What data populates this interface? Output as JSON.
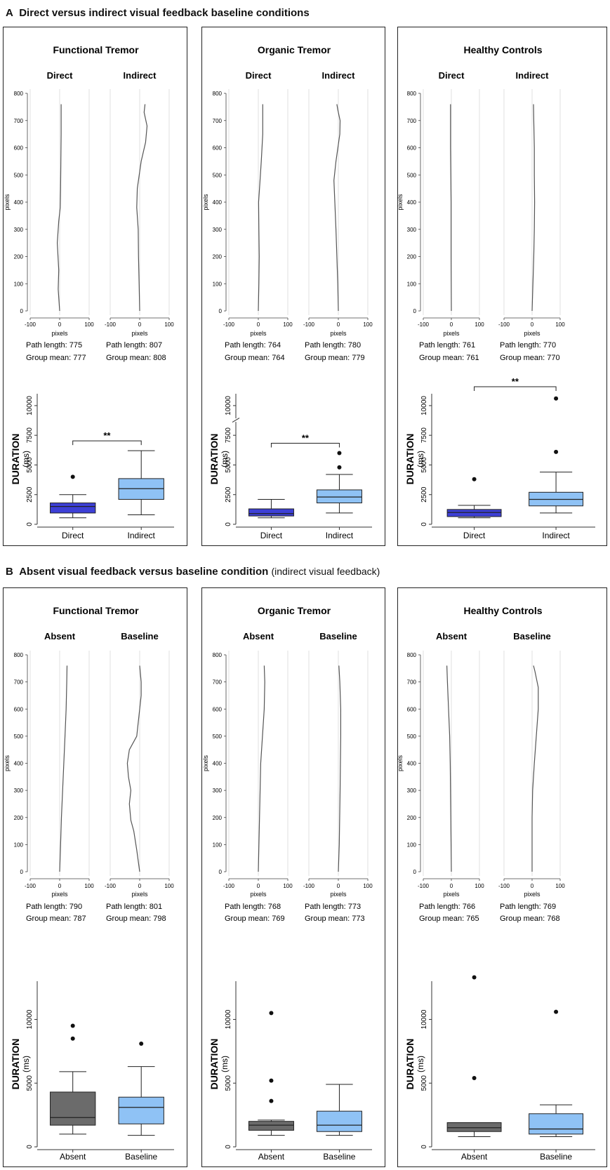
{
  "section_a": {
    "letter": "A",
    "title": "Direct versus indirect visual feedback baseline conditions",
    "subtitle": ""
  },
  "section_b": {
    "letter": "B",
    "title": "Absent visual feedback versus baseline condition",
    "subtitle": "(indirect visual feedback)"
  },
  "colors": {
    "direct": "#3d3fd6",
    "indirect": "#8fc2f5",
    "absent": "#6b6b6b",
    "baseline": "#8fc2f5",
    "trace": "#555555",
    "grid": "#d8d8d8"
  },
  "chart_data": [
    {
      "type": "line",
      "section": "A",
      "group": "Functional Tremor",
      "trajectory": {
        "ylabel": "pixels",
        "xlabel": "pixels",
        "ylim": [
          0,
          800
        ],
        "xlim": [
          -100,
          100
        ],
        "y_ticks": [
          "0",
          "100",
          "200",
          "300",
          "400",
          "500",
          "600",
          "700",
          "800"
        ],
        "x_ticks": [
          "-100",
          "0",
          "100"
        ],
        "panels": [
          {
            "label": "Direct",
            "path_length": "775",
            "group_mean": "777",
            "y": [
              0,
              80,
              150,
              250,
              330,
              380,
              450,
              550,
              650,
              760
            ],
            "x": [
              0,
              -5,
              -3,
              -8,
              -3,
              2,
              3,
              4,
              5,
              5
            ]
          },
          {
            "label": "Indirect",
            "path_length": "807",
            "group_mean": "808",
            "y": [
              0,
              100,
              200,
              300,
              380,
              450,
              550,
              620,
              680,
              730,
              760
            ],
            "x": [
              0,
              -2,
              -4,
              -5,
              -10,
              -8,
              5,
              20,
              25,
              15,
              18
            ]
          }
        ]
      },
      "box": {
        "ylabel": "DURATION\n(ms)",
        "y_ticks": [
          "0",
          "2500",
          "5000",
          "7500",
          "10000"
        ],
        "ylim": [
          0,
          11000
        ],
        "axis_break": false,
        "significance": "**",
        "boxes": [
          {
            "label": "Direct",
            "min": 550,
            "q1": 950,
            "median": 1500,
            "q3": 1800,
            "max": 2500,
            "outliers": [
              4000
            ]
          },
          {
            "label": "Indirect",
            "min": 800,
            "q1": 2100,
            "median": 3000,
            "q3": 3850,
            "max": 6200,
            "outliers": []
          }
        ]
      }
    },
    {
      "type": "line",
      "section": "A",
      "group": "Organic Tremor",
      "trajectory": {
        "ylabel": "pixels",
        "xlabel": "pixels",
        "ylim": [
          0,
          800
        ],
        "xlim": [
          -100,
          100
        ],
        "y_ticks": [
          "0",
          "100",
          "200",
          "300",
          "400",
          "500",
          "600",
          "700",
          "800"
        ],
        "x_ticks": [
          "-100",
          "0",
          "100"
        ],
        "panels": [
          {
            "label": "Direct",
            "path_length": "764",
            "group_mean": "764",
            "y": [
              0,
              100,
              200,
              300,
              400,
              450,
              550,
              650,
              760
            ],
            "x": [
              0,
              2,
              3,
              2,
              1,
              4,
              10,
              15,
              15
            ]
          },
          {
            "label": "Indirect",
            "path_length": "780",
            "group_mean": "779",
            "y": [
              0,
              100,
              200,
              300,
              400,
              480,
              550,
              650,
              700,
              740,
              760
            ],
            "x": [
              0,
              -2,
              -5,
              -8,
              -12,
              -15,
              -8,
              5,
              6,
              -2,
              -5
            ]
          }
        ]
      },
      "box": {
        "ylabel": "DURATION\n(ms)",
        "y_ticks": [
          "0",
          "2500",
          "5000",
          "7500",
          "10000"
        ],
        "ylim": [
          0,
          11000
        ],
        "axis_break": true,
        "significance": "**",
        "boxes": [
          {
            "label": "Direct",
            "min": 550,
            "q1": 700,
            "median": 900,
            "q3": 1300,
            "max": 2100,
            "outliers": []
          },
          {
            "label": "Indirect",
            "min": 950,
            "q1": 1800,
            "median": 2300,
            "q3": 2900,
            "max": 4200,
            "outliers": [
              4800,
              6000
            ]
          }
        ]
      }
    },
    {
      "type": "line",
      "section": "A",
      "group": "Healthy Controls",
      "trajectory": {
        "ylabel": "pixels",
        "xlabel": "pixels",
        "ylim": [
          0,
          800
        ],
        "xlim": [
          -100,
          100
        ],
        "y_ticks": [
          "0",
          "100",
          "200",
          "300",
          "400",
          "500",
          "600",
          "700",
          "800"
        ],
        "x_ticks": [
          "-100",
          "0",
          "100"
        ],
        "panels": [
          {
            "label": "Direct",
            "path_length": "761",
            "group_mean": "761",
            "y": [
              0,
              200,
              400,
              500,
              600,
              700,
              760
            ],
            "x": [
              0,
              -1,
              -1,
              -2,
              -3,
              -3,
              -3
            ]
          },
          {
            "label": "Indirect",
            "path_length": "770",
            "group_mean": "770",
            "y": [
              0,
              100,
              200,
              300,
              400,
              500,
              600,
              700,
              760
            ],
            "x": [
              0,
              3,
              6,
              8,
              9,
              8,
              8,
              6,
              5
            ]
          }
        ]
      },
      "box": {
        "ylabel": "DURATION\n(ms)",
        "y_ticks": [
          "0",
          "2500",
          "5000",
          "7500",
          "10000"
        ],
        "ylim": [
          0,
          11000
        ],
        "axis_break": false,
        "significance": "**",
        "boxes": [
          {
            "label": "Direct",
            "min": 550,
            "q1": 650,
            "median": 1000,
            "q3": 1250,
            "max": 1600,
            "outliers": [
              3800
            ]
          },
          {
            "label": "Indirect",
            "min": 950,
            "q1": 1550,
            "median": 2100,
            "q3": 2700,
            "max": 4400,
            "outliers": [
              6100,
              10600
            ]
          }
        ]
      }
    },
    {
      "type": "line",
      "section": "B",
      "group": "Functional Tremor",
      "trajectory": {
        "ylabel": "pixels",
        "xlabel": "pixels",
        "ylim": [
          0,
          800
        ],
        "xlim": [
          -100,
          100
        ],
        "y_ticks": [
          "0",
          "100",
          "200",
          "300",
          "400",
          "500",
          "600",
          "700",
          "800"
        ],
        "x_ticks": [
          "-100",
          "0",
          "100"
        ],
        "panels": [
          {
            "label": "Absent",
            "path_length": "790",
            "group_mean": "787",
            "y": [
              0,
              100,
              200,
              300,
              400,
              500,
              600,
              700,
              760
            ],
            "x": [
              0,
              3,
              6,
              10,
              14,
              18,
              22,
              24,
              25
            ]
          },
          {
            "label": "Baseline",
            "path_length": "801",
            "group_mean": "798",
            "y": [
              0,
              80,
              150,
              190,
              250,
              300,
              350,
              400,
              450,
              500,
              550,
              600,
              650,
              700,
              760
            ],
            "x": [
              0,
              -10,
              -20,
              -30,
              -35,
              -30,
              -38,
              -42,
              -35,
              -10,
              -5,
              0,
              5,
              5,
              0
            ]
          }
        ]
      },
      "box": {
        "ylabel": "DURATION\n(ms)",
        "y_ticks": [
          "0",
          "5000",
          "10000"
        ],
        "ylim": [
          0,
          13000
        ],
        "axis_break": false,
        "significance": "",
        "boxes": [
          {
            "label": "Absent",
            "min": 1000,
            "q1": 1700,
            "median": 2300,
            "q3": 4300,
            "max": 5900,
            "outliers": [
              8500,
              9500
            ]
          },
          {
            "label": "Baseline",
            "min": 900,
            "q1": 1800,
            "median": 3100,
            "q3": 3900,
            "max": 6300,
            "outliers": [
              8100
            ]
          }
        ]
      }
    },
    {
      "type": "line",
      "section": "B",
      "group": "Organic Tremor",
      "trajectory": {
        "ylabel": "pixels",
        "xlabel": "pixels",
        "ylim": [
          0,
          800
        ],
        "xlim": [
          -100,
          100
        ],
        "y_ticks": [
          "0",
          "100",
          "200",
          "300",
          "400",
          "500",
          "600",
          "700",
          "800"
        ],
        "x_ticks": [
          "-100",
          "0",
          "100"
        ],
        "panels": [
          {
            "label": "Absent",
            "path_length": "768",
            "group_mean": "769",
            "y": [
              0,
              200,
              400,
              500,
              600,
              700,
              760
            ],
            "x": [
              0,
              4,
              8,
              14,
              20,
              22,
              20
            ]
          },
          {
            "label": "Baseline",
            "path_length": "773",
            "group_mean": "773",
            "y": [
              0,
              100,
              300,
              500,
              600,
              700,
              760
            ],
            "x": [
              0,
              3,
              6,
              8,
              8,
              5,
              2
            ]
          }
        ]
      },
      "box": {
        "ylabel": "DURATION\n(ms)",
        "y_ticks": [
          "0",
          "5000",
          "10000"
        ],
        "ylim": [
          0,
          13000
        ],
        "axis_break": false,
        "significance": "",
        "boxes": [
          {
            "label": "Absent",
            "min": 900,
            "q1": 1300,
            "median": 1700,
            "q3": 2000,
            "max": 2100,
            "outliers": [
              3600,
              5200,
              10500
            ]
          },
          {
            "label": "Baseline",
            "min": 900,
            "q1": 1200,
            "median": 1700,
            "q3": 2800,
            "max": 4900,
            "outliers": []
          }
        ]
      }
    },
    {
      "type": "line",
      "section": "B",
      "group": "Healthy Controls",
      "trajectory": {
        "ylabel": "pixels",
        "xlabel": "pixels",
        "ylim": [
          0,
          800
        ],
        "xlim": [
          -100,
          100
        ],
        "y_ticks": [
          "0",
          "100",
          "200",
          "300",
          "400",
          "500",
          "600",
          "700",
          "800"
        ],
        "x_ticks": [
          "-100",
          "0",
          "100"
        ],
        "panels": [
          {
            "label": "Absent",
            "path_length": "766",
            "group_mean": "765",
            "y": [
              0,
              200,
              400,
              500,
              600,
              700,
              760
            ],
            "x": [
              0,
              -2,
              -4,
              -6,
              -10,
              -14,
              -16
            ]
          },
          {
            "label": "Baseline",
            "path_length": "769",
            "group_mean": "768",
            "y": [
              0,
              200,
              300,
              400,
              500,
              600,
              680,
              740,
              760
            ],
            "x": [
              0,
              0,
              2,
              8,
              15,
              22,
              22,
              10,
              5
            ]
          }
        ]
      },
      "box": {
        "ylabel": "DURATION\n(ms)",
        "y_ticks": [
          "0",
          "5000",
          "10000"
        ],
        "ylim": [
          0,
          13000
        ],
        "axis_break": false,
        "significance": "",
        "boxes": [
          {
            "label": "Absent",
            "min": 800,
            "q1": 1200,
            "median": 1500,
            "q3": 1900,
            "max": 1900,
            "outliers": [
              5400,
              13300
            ]
          },
          {
            "label": "Baseline",
            "min": 800,
            "q1": 1000,
            "median": 1400,
            "q3": 2600,
            "max": 3300,
            "outliers": [
              10600
            ]
          }
        ]
      }
    }
  ]
}
